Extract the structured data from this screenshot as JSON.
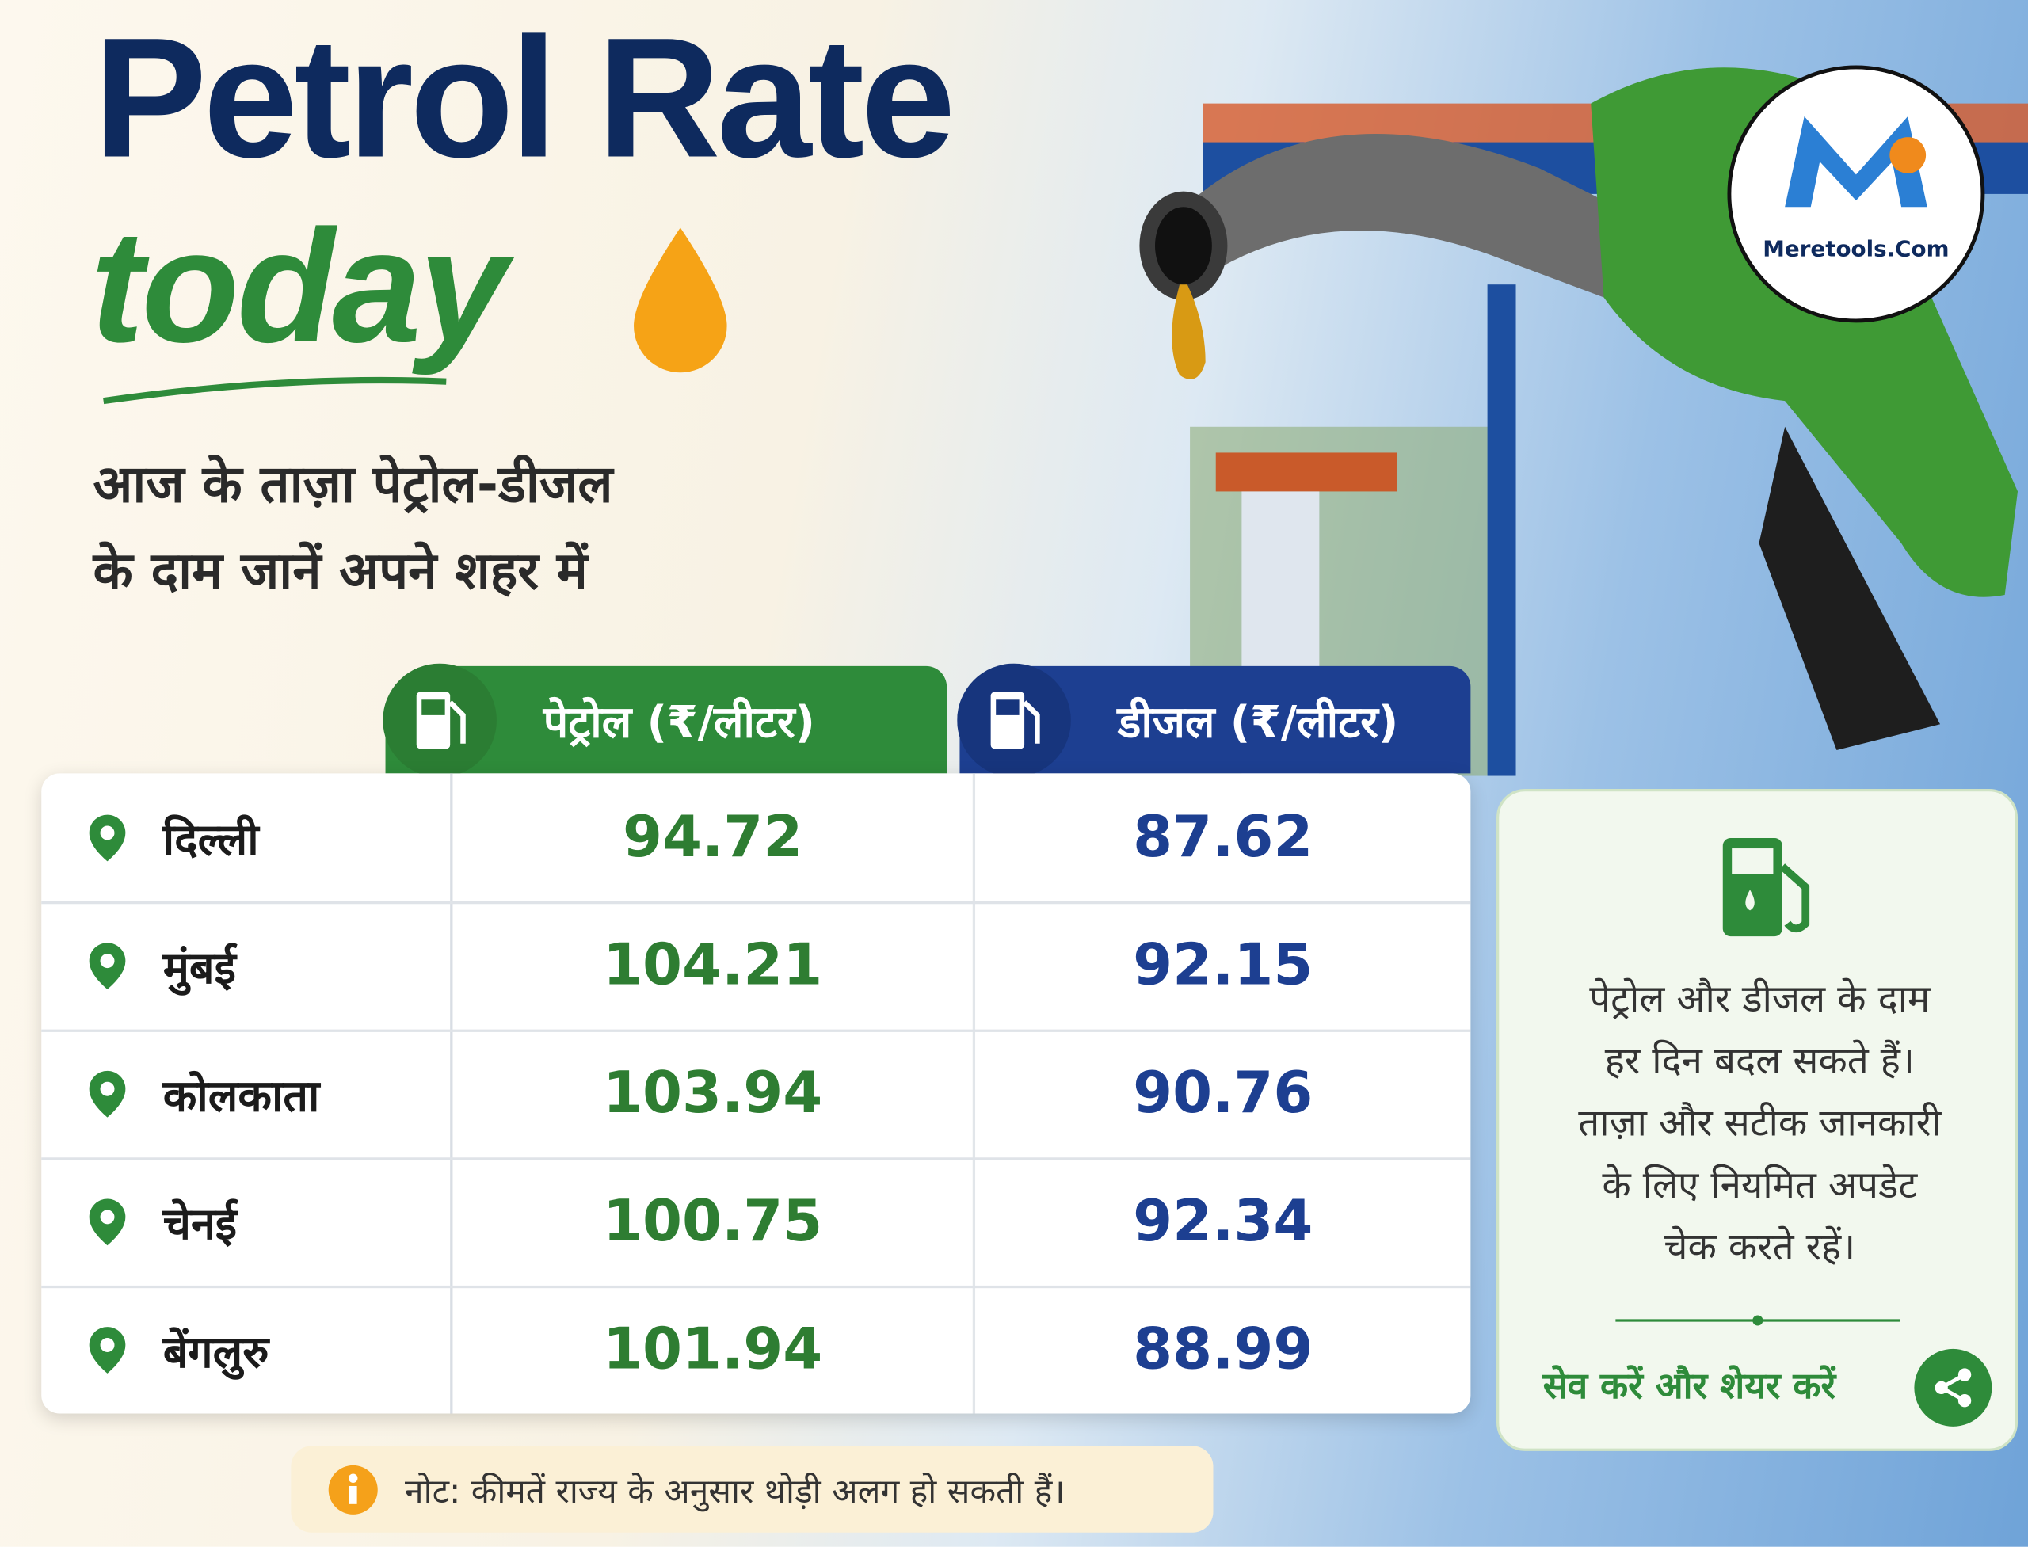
{
  "header": {
    "title": "Petrol Rate",
    "title_accent": "today",
    "subtitle_lines": [
      "आज के ताज़ा पेट्रोल-डीजल",
      "के दाम जानें अपने शहर में"
    ]
  },
  "logo": {
    "text": "Meretools.Com"
  },
  "table": {
    "columns": [
      "पेट्रोल (₹/लीटर)",
      "डीजल (₹/लीटर)"
    ],
    "rows": [
      [
        "दिल्ली",
        "94.72",
        "87.62"
      ],
      [
        "मुंबई",
        "104.21",
        "92.15"
      ],
      [
        "कोलकाता",
        "103.94",
        "90.76"
      ],
      [
        "चेनई",
        "100.75",
        "92.34"
      ],
      [
        "बेंगलुरु",
        "101.94",
        "88.99"
      ]
    ]
  },
  "info_card": {
    "lines": [
      "पेट्रोल और डीजल के दाम",
      "हर दिन बदल सकते हैं।",
      "ताज़ा और सटीक जानकारी",
      "के लिए नियमित अपडेट",
      "चेक करते रहें।"
    ],
    "share_text": "सेव करें और शेयर करें"
  },
  "note": {
    "text": "नोट: कीमतें राज्य के अनुसार थोड़ी अलग हो सकती हैं।"
  }
}
